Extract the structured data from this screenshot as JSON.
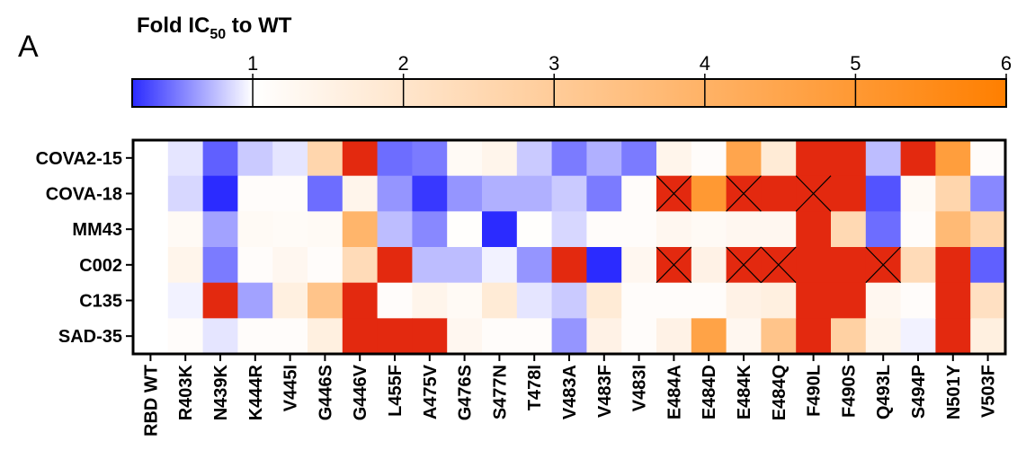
{
  "panel_label": "A",
  "chart_data": {
    "type": "heatmap",
    "title": "Fold IC50 to WT",
    "title_parts": {
      "main": "Fold IC",
      "subscript": "50",
      "suffix": " to WT"
    },
    "colorbar": {
      "ticks": [
        "1",
        "2",
        "3",
        "4",
        "5",
        "6"
      ],
      "range": [
        0.2,
        6
      ],
      "low_color": "#2b2bff",
      "mid_color": "#ffffff",
      "mid_value": 1,
      "high_color": "#ff7f00"
    },
    "saturated_color": "#e3290f",
    "rows": [
      "COVA2-15",
      "COVA-18",
      "MM43",
      "C002",
      "C135",
      "SAD-35"
    ],
    "columns": [
      "RBD WT",
      "R403K",
      "N439K",
      "K444R",
      "V445I",
      "G446S",
      "G446V",
      "L455F",
      "A475V",
      "G476S",
      "S477N",
      "T478I",
      "V483A",
      "V483F",
      "V483I",
      "E484A",
      "E484D",
      "E484K",
      "E484Q",
      "F490L",
      "F490S",
      "Q493L",
      "S494P",
      "N501Y",
      "V503F"
    ],
    "values": [
      [
        1,
        0.9,
        0.4,
        0.8,
        0.9,
        2.6,
        8,
        0.45,
        0.5,
        1.2,
        1.4,
        0.8,
        0.5,
        0.7,
        0.5,
        1.4,
        1.1,
        4.5,
        1.8,
        8,
        8,
        0.75,
        8,
        4.8,
        1.1
      ],
      [
        1,
        0.85,
        0.15,
        1.1,
        1.1,
        0.45,
        1.4,
        0.6,
        0.25,
        0.6,
        0.7,
        0.7,
        0.8,
        0.5,
        1.1,
        8,
        5.0,
        8,
        8,
        8,
        8,
        0.35,
        1.2,
        2.6,
        0.55
      ],
      [
        1,
        1.2,
        0.65,
        1.2,
        1.15,
        1.2,
        3.9,
        0.75,
        0.55,
        1.05,
        0.2,
        1.05,
        0.85,
        1.1,
        1.1,
        1.3,
        1.2,
        1.3,
        1.3,
        8,
        2.5,
        0.45,
        1.1,
        3.7,
        2.6
      ],
      [
        1,
        1.4,
        0.5,
        1.1,
        1.3,
        1.1,
        2.4,
        8,
        0.75,
        0.75,
        0.95,
        0.6,
        8,
        0.1,
        1.3,
        8,
        1.5,
        8,
        8,
        8,
        8,
        8,
        2.4,
        8,
        0.4
      ],
      [
        1,
        0.95,
        8,
        0.65,
        1.6,
        3.3,
        8,
        1.1,
        1.4,
        1.2,
        1.8,
        0.9,
        0.8,
        1.8,
        1.1,
        1.1,
        1.1,
        1.5,
        1.6,
        8,
        8,
        1.3,
        1.1,
        8,
        2.2
      ],
      [
        1,
        1.1,
        0.9,
        1.1,
        1.1,
        1.6,
        8,
        8,
        8,
        1.3,
        1.1,
        1.1,
        0.6,
        1.5,
        1.1,
        1.5,
        4.6,
        1.3,
        3.3,
        8,
        2.8,
        1.4,
        0.95,
        8,
        1.6
      ]
    ],
    "no_neutralization_cells": [
      {
        "row": "COVA-18",
        "column": "E484A"
      },
      {
        "row": "COVA-18",
        "column": "E484K"
      },
      {
        "row": "COVA-18",
        "column": "F490L"
      },
      {
        "row": "C002",
        "column": "E484A"
      },
      {
        "row": "C002",
        "column": "E484K"
      },
      {
        "row": "C002",
        "column": "E484Q"
      },
      {
        "row": "C002",
        "column": "Q493L"
      }
    ]
  }
}
